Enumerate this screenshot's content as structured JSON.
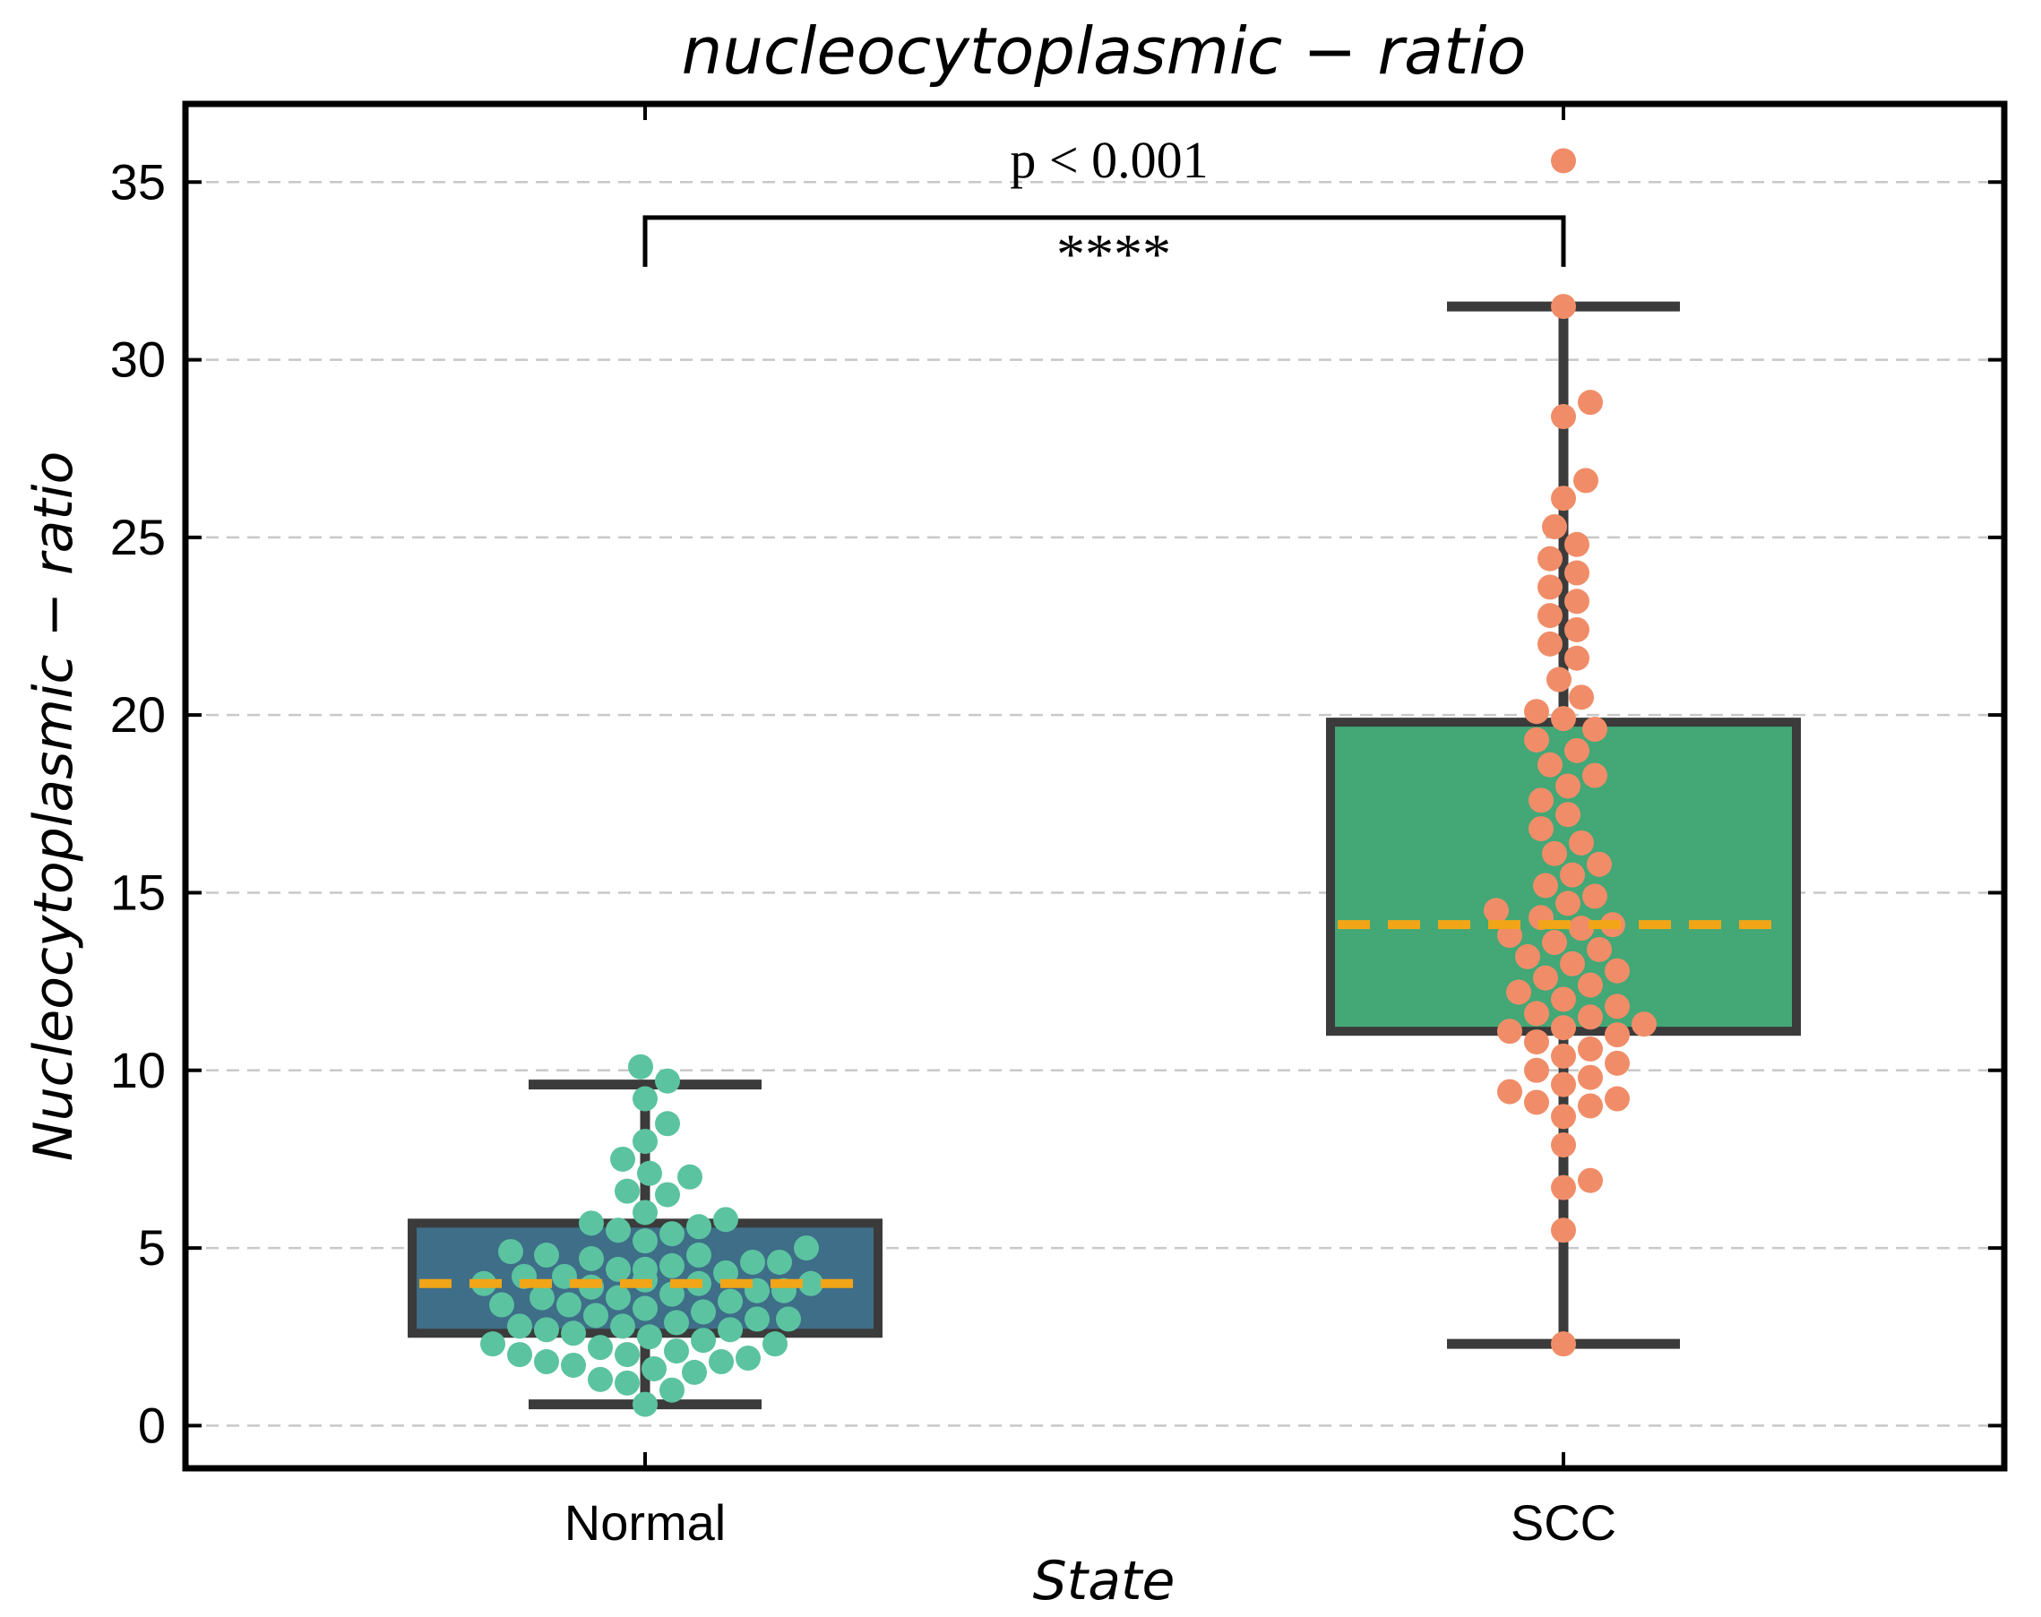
{
  "chart_data": {
    "type": "box",
    "title": "nucleocytoplasmic − ratio",
    "xlabel": "State",
    "ylabel": "Nucleocytoplasmic − ratio",
    "categories": [
      "Normal",
      "SCC"
    ],
    "ylim": [
      -1.2,
      37.2
    ],
    "yticks": [
      0,
      5,
      10,
      15,
      20,
      25,
      30,
      35
    ],
    "grid": "y-dashed",
    "colors": {
      "Normal": {
        "box": "#3e6e88",
        "points": "#5bc3a0"
      },
      "SCC": {
        "box": "#43a776",
        "points": "#f08d68"
      },
      "median": "#f2a516",
      "box_edge": "#3b3b3b"
    },
    "boxes": [
      {
        "name": "Normal",
        "whisker_low": 0.6,
        "q1": 2.6,
        "median": 4.0,
        "q3": 5.7,
        "whisker_high": 9.6
      },
      {
        "name": "SCC",
        "whisker_low": 2.3,
        "q1": 11.1,
        "median": 14.1,
        "q3": 19.8,
        "whisker_high": 31.5
      }
    ],
    "series": [
      {
        "name": "Normal",
        "values": [
          0.6,
          1.0,
          1.2,
          1.3,
          1.5,
          1.6,
          1.7,
          1.8,
          1.8,
          1.9,
          2.0,
          2.0,
          2.1,
          2.2,
          2.3,
          2.3,
          2.4,
          2.5,
          2.6,
          2.7,
          2.7,
          2.8,
          2.8,
          2.9,
          3.0,
          3.0,
          3.1,
          3.2,
          3.3,
          3.4,
          3.4,
          3.5,
          3.6,
          3.6,
          3.7,
          3.8,
          3.8,
          3.9,
          4.0,
          4.0,
          4.0,
          4.1,
          4.2,
          4.2,
          4.3,
          4.4,
          4.4,
          4.5,
          4.6,
          4.6,
          4.7,
          4.8,
          4.8,
          4.9,
          5.0,
          5.2,
          5.4,
          5.5,
          5.6,
          5.7,
          5.8,
          6.0,
          6.5,
          6.6,
          7.0,
          7.1,
          7.5,
          8.0,
          8.5,
          9.2,
          9.7,
          10.1
        ]
      },
      {
        "name": "SCC",
        "values": [
          2.3,
          5.5,
          6.7,
          6.9,
          7.9,
          8.7,
          9.0,
          9.1,
          9.2,
          9.4,
          9.6,
          9.8,
          10.0,
          10.2,
          10.4,
          10.6,
          10.8,
          11.0,
          11.1,
          11.2,
          11.3,
          11.5,
          11.6,
          11.8,
          12.0,
          12.2,
          12.4,
          12.6,
          12.8,
          13.0,
          13.2,
          13.4,
          13.6,
          13.8,
          14.0,
          14.1,
          14.3,
          14.5,
          14.7,
          14.9,
          15.2,
          15.5,
          15.8,
          16.1,
          16.4,
          16.8,
          17.2,
          17.6,
          18.0,
          18.3,
          18.6,
          19.0,
          19.3,
          19.6,
          19.9,
          20.1,
          20.5,
          21.0,
          21.6,
          22.0,
          22.4,
          22.8,
          23.2,
          23.6,
          24.0,
          24.4,
          24.8,
          25.3,
          26.1,
          26.6,
          28.4,
          28.8,
          31.5,
          35.6
        ]
      }
    ],
    "annotation": {
      "text": "p < 0.001",
      "stars": "****",
      "between": [
        "Normal",
        "SCC"
      ],
      "bracket_y": 34.0
    }
  }
}
